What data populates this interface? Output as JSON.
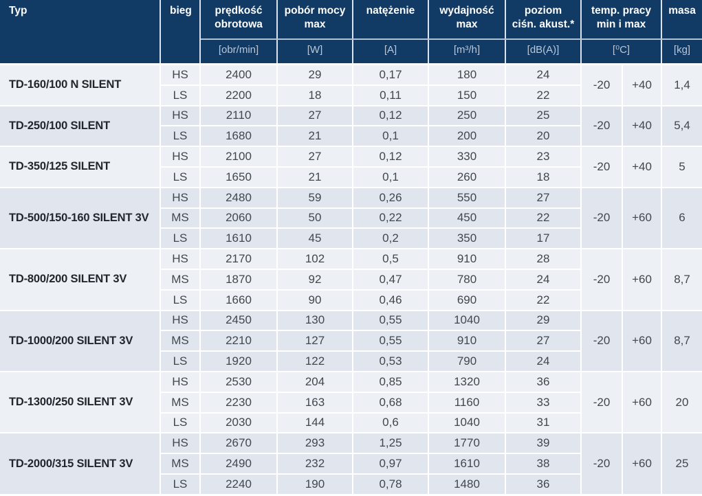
{
  "colors": {
    "header_bg": "#113b64",
    "header_text": "#ffffff",
    "unit_text": "#b9c7d9",
    "group_light_bg": "#edf0f5",
    "group_dark_bg": "#e1e6ee",
    "type_text": "#23272d",
    "data_text": "#42474e"
  },
  "table": {
    "header": {
      "typ": "Typ",
      "bieg": "bieg",
      "cols": [
        {
          "label": [
            "prędkość",
            "obrotowa"
          ],
          "unit": "[obr/min]"
        },
        {
          "label": [
            "pobór mocy",
            "max"
          ],
          "unit": "[W]"
        },
        {
          "label": [
            "natężenie"
          ],
          "unit": "[A]"
        },
        {
          "label": [
            "wydajność",
            "max"
          ],
          "unit": "[m³/h]"
        },
        {
          "label": [
            "poziom",
            "ciśn. akust.*"
          ],
          "unit": "[dB(A)]"
        }
      ],
      "temp": {
        "label": [
          "temp. pracy",
          "min i max"
        ],
        "unit": "[⁰C]"
      },
      "masa": {
        "label": [
          "masa"
        ],
        "unit": "[kg]"
      }
    },
    "row_fields": [
      "bieg",
      "speed",
      "power",
      "current",
      "flow",
      "noise"
    ],
    "groups": [
      {
        "typ": "TD-160/100 N SILENT",
        "temp_min": "-20",
        "temp_max": "+40",
        "masa": "1,4",
        "rows": [
          [
            "HS",
            "2400",
            "29",
            "0,17",
            "180",
            "24"
          ],
          [
            "LS",
            "2200",
            "18",
            "0,11",
            "150",
            "22"
          ]
        ]
      },
      {
        "typ": "TD-250/100 SILENT",
        "temp_min": "-20",
        "temp_max": "+40",
        "masa": "5,4",
        "rows": [
          [
            "HS",
            "2110",
            "27",
            "0,12",
            "250",
            "25"
          ],
          [
            "LS",
            "1680",
            "21",
            "0,1",
            "200",
            "20"
          ]
        ]
      },
      {
        "typ": "TD-350/125 SILENT",
        "temp_min": "-20",
        "temp_max": "+40",
        "masa": "5",
        "rows": [
          [
            "HS",
            "2100",
            "27",
            "0,12",
            "330",
            "23"
          ],
          [
            "LS",
            "1650",
            "21",
            "0,1",
            "260",
            "18"
          ]
        ]
      },
      {
        "typ": "TD-500/150-160 SILENT 3V",
        "temp_min": "-20",
        "temp_max": "+60",
        "masa": "6",
        "rows": [
          [
            "HS",
            "2480",
            "59",
            "0,26",
            "550",
            "27"
          ],
          [
            "MS",
            "2060",
            "50",
            "0,22",
            "450",
            "22"
          ],
          [
            "LS",
            "1610",
            "45",
            "0,2",
            "350",
            "17"
          ]
        ]
      },
      {
        "typ": "TD-800/200 SILENT 3V",
        "temp_min": "-20",
        "temp_max": "+60",
        "masa": "8,7",
        "rows": [
          [
            "HS",
            "2170",
            "102",
            "0,5",
            "910",
            "28"
          ],
          [
            "MS",
            "1870",
            "92",
            "0,47",
            "780",
            "24"
          ],
          [
            "LS",
            "1660",
            "90",
            "0,46",
            "690",
            "22"
          ]
        ]
      },
      {
        "typ": "TD-1000/200 SILENT 3V",
        "temp_min": "-20",
        "temp_max": "+60",
        "masa": "8,7",
        "rows": [
          [
            "HS",
            "2450",
            "130",
            "0,55",
            "1040",
            "29"
          ],
          [
            "MS",
            "2210",
            "127",
            "0,55",
            "910",
            "27"
          ],
          [
            "LS",
            "1920",
            "122",
            "0,53",
            "790",
            "24"
          ]
        ]
      },
      {
        "typ": "TD-1300/250 SILENT 3V",
        "temp_min": "-20",
        "temp_max": "+60",
        "masa": "20",
        "rows": [
          [
            "HS",
            "2530",
            "204",
            "0,85",
            "1320",
            "36"
          ],
          [
            "MS",
            "2230",
            "163",
            "0,68",
            "1160",
            "33"
          ],
          [
            "LS",
            "2030",
            "144",
            "0,6",
            "1040",
            "31"
          ]
        ]
      },
      {
        "typ": "TD-2000/315 SILENT 3V",
        "temp_min": "-20",
        "temp_max": "+60",
        "masa": "25",
        "rows": [
          [
            "HS",
            "2670",
            "293",
            "1,25",
            "1770",
            "39"
          ],
          [
            "MS",
            "2490",
            "232",
            "0,97",
            "1610",
            "38"
          ],
          [
            "LS",
            "2240",
            "190",
            "0,78",
            "1480",
            "36"
          ]
        ]
      }
    ]
  }
}
